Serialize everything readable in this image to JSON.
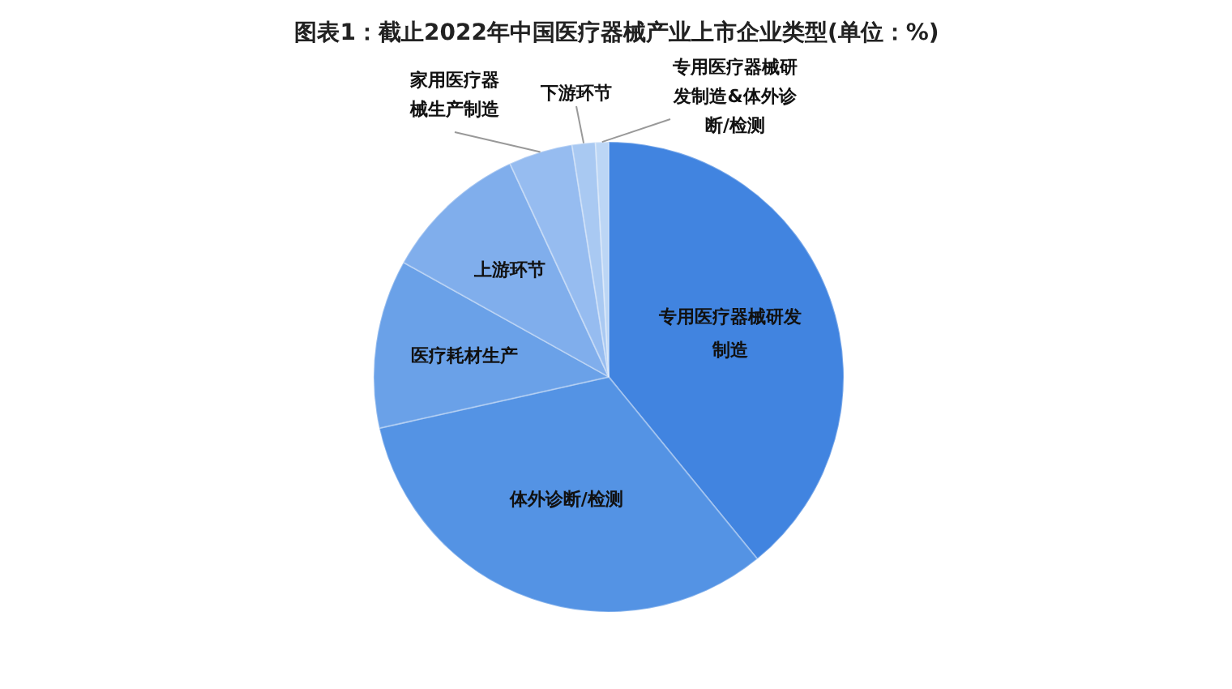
{
  "chart_data": {
    "type": "pie",
    "title": "图表1：截止2022年中国医疗器械产业上市企业类型(单位：%)",
    "categories": [
      "专用医疗器械研发制造",
      "体外诊断/检测",
      "医疗耗材生产",
      "上游环节",
      "家用医疗器械生产制造",
      "下游环节",
      "专用医疗器械研发制造&体外诊断/检测"
    ],
    "values": [
      39.1,
      32.4,
      11.6,
      10,
      4.4,
      1.6,
      0.9
    ],
    "colors": [
      "#4184e0",
      "#5493e4",
      "#6aa1e8",
      "#80aeec",
      "#96bcf0",
      "#a9c9f2",
      "#bcd6f5"
    ]
  }
}
